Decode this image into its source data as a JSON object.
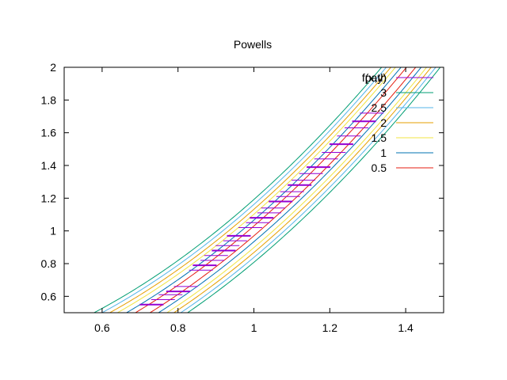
{
  "chart_data": {
    "type": "line",
    "title": "Powells",
    "xlabel": "",
    "ylabel": "",
    "xlim": [
      0.5,
      1.5
    ],
    "ylim": [
      0.5,
      2.0
    ],
    "xticks": [
      0.6,
      0.8,
      1.0,
      1.2,
      1.4
    ],
    "xtick_labels": [
      "0.6",
      "0.8",
      "1",
      "1.2",
      "1.4"
    ],
    "yticks": [
      0.6,
      0.8,
      1.0,
      1.2,
      1.4,
      1.6,
      1.8,
      2.0
    ],
    "ytick_labels": [
      "0.6",
      "0.8",
      "1",
      "1.2",
      "1.4",
      "1.6",
      "1.8",
      "2"
    ],
    "grid": false,
    "legend_position": "top-right",
    "contour_function": "f(x,y)",
    "contours": [
      {
        "level": 3,
        "label": "3",
        "color": "#009e73",
        "offset": 0.16
      },
      {
        "level": 2.5,
        "label": "2.5",
        "color": "#56b4e9",
        "offset": 0.135
      },
      {
        "level": 2,
        "label": "2",
        "color": "#e69f00",
        "offset": 0.11
      },
      {
        "level": 1.5,
        "label": "1.5",
        "color": "#f0e442",
        "offset": 0.085
      },
      {
        "level": 1,
        "label": "1",
        "color": "#0072b2",
        "offset": 0.055
      },
      {
        "level": 0.5,
        "label": "0.5",
        "color": "#e51e10",
        "offset": 0.025
      }
    ],
    "path_series": {
      "label": "path",
      "color": "#9400d3",
      "points": [
        [
          0.72,
          0.55
        ],
        [
          0.75,
          0.58
        ],
        [
          0.77,
          0.61
        ],
        [
          0.79,
          0.63
        ],
        [
          0.81,
          0.66
        ],
        [
          0.85,
          0.76
        ],
        [
          0.86,
          0.79
        ],
        [
          0.88,
          0.82
        ],
        [
          0.89,
          0.85
        ],
        [
          0.91,
          0.88
        ],
        [
          0.92,
          0.91
        ],
        [
          0.94,
          0.94
        ],
        [
          0.95,
          0.97
        ],
        [
          0.98,
          1.02
        ],
        [
          1.0,
          1.05
        ],
        [
          1.01,
          1.08
        ],
        [
          1.03,
          1.11
        ],
        [
          1.04,
          1.14
        ],
        [
          1.06,
          1.18
        ],
        [
          1.08,
          1.21
        ],
        [
          1.09,
          1.24
        ],
        [
          1.11,
          1.28
        ],
        [
          1.12,
          1.31
        ],
        [
          1.14,
          1.35
        ],
        [
          1.16,
          1.39
        ],
        [
          1.18,
          1.44
        ],
        [
          1.2,
          1.48
        ],
        [
          1.22,
          1.53
        ],
        [
          1.24,
          1.58
        ],
        [
          1.26,
          1.63
        ],
        [
          1.28,
          1.67
        ],
        [
          1.3,
          1.72
        ]
      ]
    }
  }
}
